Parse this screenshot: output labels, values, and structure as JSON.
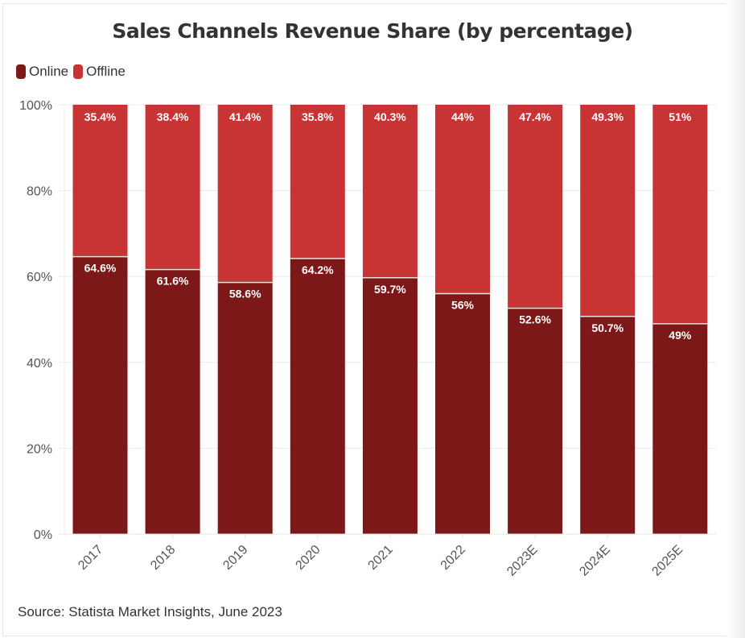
{
  "chart_data": {
    "type": "bar",
    "stacked": true,
    "title": "Sales Channels Revenue Share (by percentage)",
    "xlabel": "",
    "ylabel": "",
    "ylim": [
      0,
      100
    ],
    "yticks": [
      0,
      20,
      40,
      60,
      80,
      100
    ],
    "ytick_labels": [
      "0%",
      "20%",
      "40%",
      "60%",
      "80%",
      "100%"
    ],
    "grid": true,
    "legend_position": "top-left",
    "categories": [
      "2017",
      "2018",
      "2019",
      "2020",
      "2021",
      "2022",
      "2023E",
      "2024E",
      "2025E"
    ],
    "series": [
      {
        "name": "Online",
        "color": "#7d1818",
        "values": [
          64.6,
          61.6,
          58.6,
          64.2,
          59.7,
          56,
          52.6,
          50.7,
          49
        ],
        "labels": [
          "64.6%",
          "61.6%",
          "58.6%",
          "64.2%",
          "59.7%",
          "56%",
          "52.6%",
          "50.7%",
          "49%"
        ]
      },
      {
        "name": "Offline",
        "color": "#c83434",
        "values": [
          35.4,
          38.4,
          41.4,
          35.8,
          40.3,
          44,
          47.4,
          49.3,
          51
        ],
        "labels": [
          "35.4%",
          "38.4%",
          "41.4%",
          "35.8%",
          "40.3%",
          "44%",
          "47.4%",
          "49.3%",
          "51%"
        ]
      }
    ],
    "source": "Source: Statista Market Insights, June 2023"
  },
  "legend": {
    "items": [
      {
        "label": "Online",
        "color": "#7d1818"
      },
      {
        "label": "Offline",
        "color": "#c83434"
      }
    ]
  },
  "colors": {
    "text": "#333333",
    "grid": "#ececec",
    "label": "#ffffff"
  }
}
